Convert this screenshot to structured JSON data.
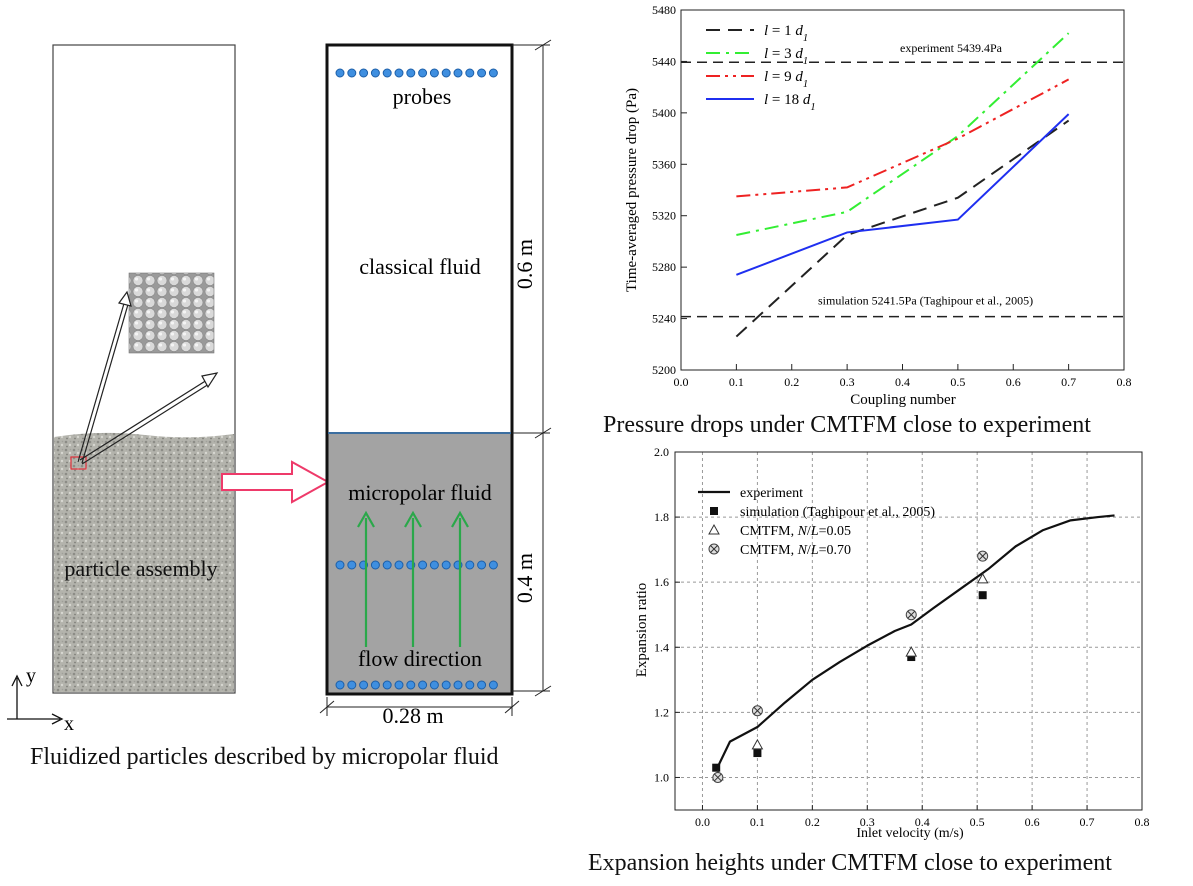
{
  "left": {
    "caption": "Fluidized particles described by micropolar fluid",
    "axis_y": "y",
    "axis_x": "x",
    "labels": {
      "probes": "probes",
      "classical_fluid": "classical fluid",
      "micropolar_fluid": "micropolar fluid",
      "particle_assembly": "particle assembly",
      "flow_direction": "flow direction",
      "height_top": "0.6 m",
      "height_bottom": "0.4 m",
      "width": "0.28 m"
    }
  },
  "chart_data": [
    {
      "type": "line",
      "caption": "Pressure drops under CMTFM close to experiment",
      "xlabel": "Coupling number",
      "ylabel": "Time-averaged pressure drop (Pa)",
      "xlim": [
        0.0,
        0.8
      ],
      "ylim": [
        5200,
        5480
      ],
      "xticks": [
        "0.0",
        "0.1",
        "0.2",
        "0.3",
        "0.4",
        "0.5",
        "0.6",
        "0.7",
        "0.8"
      ],
      "yticks": [
        "5200",
        "5240",
        "5280",
        "5320",
        "5360",
        "5400",
        "5440",
        "5480"
      ],
      "grid": false,
      "legend_position": "top-left",
      "x": [
        0.1,
        0.3,
        0.5,
        0.7
      ],
      "series": [
        {
          "name": "l = 1 d1",
          "values": [
            5226,
            5305,
            5334,
            5394
          ],
          "color": "#222222",
          "dash": "14,8"
        },
        {
          "name": "l = 3 d1",
          "values": [
            5305,
            5323,
            5382,
            5462
          ],
          "color": "#33ee33",
          "dash": "14,6,3,6"
        },
        {
          "name": "l = 9 d1",
          "values": [
            5335,
            5342,
            5380,
            5426
          ],
          "color": "#ee2222",
          "dash": "14,5,3,5,3,5"
        },
        {
          "name": "l = 18 d1",
          "values": [
            5274,
            5307,
            5317,
            5399
          ],
          "color": "#1f2ff0",
          "dash": ""
        }
      ],
      "reference_lines": [
        {
          "label": "experiment 5439.4Pa",
          "value": 5439.4
        },
        {
          "label": "simulation 5241.5Pa (Taghipour et al., 2005)",
          "value": 5241.5
        }
      ]
    },
    {
      "type": "scatter",
      "caption": "Expansion heights under CMTFM close to experiment",
      "xlabel": "Inlet velocity (m/s)",
      "ylabel": "Expansion ratio",
      "xlim": [
        -0.05,
        0.8
      ],
      "ylim": [
        0.9,
        2.0
      ],
      "xticks": [
        "0.0",
        "0.1",
        "0.2",
        "0.3",
        "0.4",
        "0.5",
        "0.6",
        "0.7",
        "0.8"
      ],
      "yticks": [
        "1.0",
        "1.2",
        "1.4",
        "1.6",
        "1.8",
        "2.0"
      ],
      "grid": true,
      "legend_position": "top-left",
      "series": [
        {
          "name": "experiment",
          "marker": "line",
          "points": [
            [
              0.02,
              1.03
            ],
            [
              0.03,
              1.04
            ],
            [
              0.05,
              1.11
            ],
            [
              0.1,
              1.155
            ],
            [
              0.15,
              1.23
            ],
            [
              0.2,
              1.3
            ],
            [
              0.25,
              1.355
            ],
            [
              0.3,
              1.405
            ],
            [
              0.35,
              1.45
            ],
            [
              0.38,
              1.47
            ],
            [
              0.42,
              1.52
            ],
            [
              0.47,
              1.58
            ],
            [
              0.52,
              1.64
            ],
            [
              0.57,
              1.71
            ],
            [
              0.62,
              1.76
            ],
            [
              0.67,
              1.79
            ],
            [
              0.72,
              1.8
            ],
            [
              0.75,
              1.805
            ]
          ]
        },
        {
          "name": "simulation (Taghipour et al., 2005)",
          "marker": "filled-square",
          "points": [
            [
              0.025,
              1.03
            ],
            [
              0.1,
              1.075
            ],
            [
              0.38,
              1.37
            ],
            [
              0.51,
              1.56
            ]
          ]
        },
        {
          "name": "CMTFM, N/L=0.05",
          "marker": "triangle",
          "points": [
            [
              0.028,
              1.005
            ],
            [
              0.1,
              1.1
            ],
            [
              0.38,
              1.385
            ],
            [
              0.51,
              1.61
            ]
          ]
        },
        {
          "name": "CMTFM, N/L=0.70",
          "marker": "crossed-circle",
          "points": [
            [
              0.028,
              1.0
            ],
            [
              0.1,
              1.205
            ],
            [
              0.38,
              1.5
            ],
            [
              0.51,
              1.68
            ]
          ]
        }
      ]
    }
  ]
}
